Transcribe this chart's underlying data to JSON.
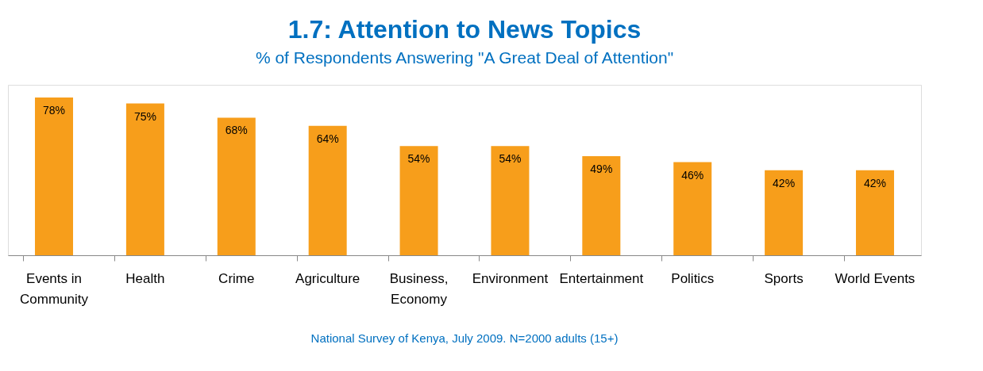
{
  "chart_data": {
    "type": "bar",
    "title": "1.7: Attention to News Topics",
    "subtitle": "% of Respondents Answering \"A Great Deal of Attention\"",
    "categories": [
      "Events in Community",
      "Health",
      "Crime",
      "Agriculture",
      "Business, Economy",
      "Environment",
      "Entertainment",
      "Politics",
      "Sports",
      "World Events"
    ],
    "values": [
      78,
      75,
      68,
      64,
      54,
      54,
      49,
      46,
      42,
      42
    ],
    "value_labels": [
      "78%",
      "75%",
      "68%",
      "64%",
      "54%",
      "54%",
      "49%",
      "46%",
      "42%",
      "42%"
    ],
    "color": "#f79e1b",
    "annotations": [
      "National Survey of Kenya, July 2009. N=2000 adults (15+)"
    ],
    "data_labels": false
  }
}
